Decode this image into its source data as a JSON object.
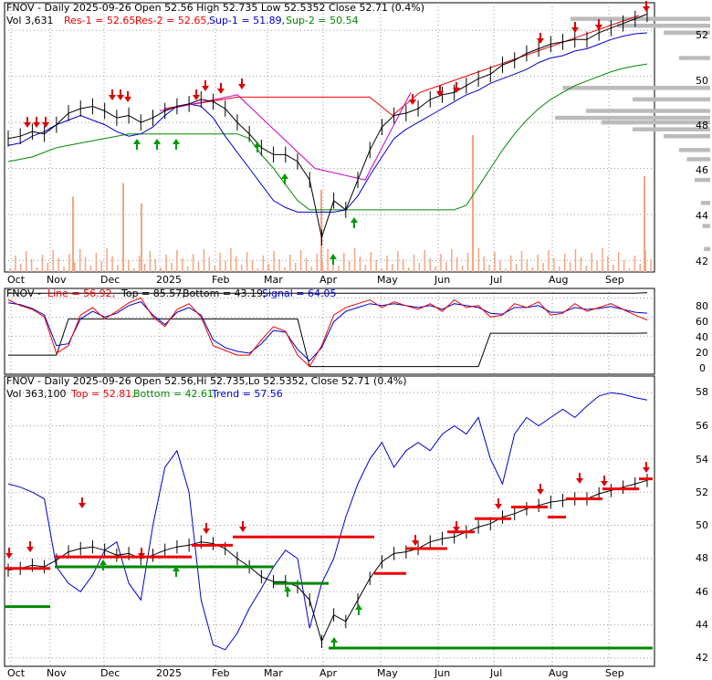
{
  "panel1": {
    "header": {
      "line1": "FNOV - Daily 2025-09-26 Open 52.56  High 52.735  Low 52.5352  Close 52.71 (0.4%)",
      "vol": "Vol 3,631",
      "res1": "Res-1 = 52.65,",
      "res2": "Res-2 = 52.65,",
      "sup1": "Sup-1 = 51.89,",
      "sup2": "Sup-2 = 50.54"
    },
    "yticks": [
      "52",
      "50",
      "48",
      "46",
      "44",
      "42"
    ]
  },
  "panel2": {
    "header": {
      "name": "FNOV -",
      "line": "Line = 56.92,",
      "top": "Top = 85.57,",
      "bottom": "Bottom = 43.19,",
      "signal": "Signal = 64.05"
    },
    "yticks": [
      "80",
      "60",
      "40",
      "20",
      "0"
    ]
  },
  "panel3": {
    "header": {
      "line1": "FNOV - Daily 2025-09-26 Open 52.56,Hi 52.735,Lo 52.5352, Close 52.71 (0.4%)",
      "vol": "Vol 363,100",
      "top": "Top = 52.81,",
      "bottom": "Bottom = 42.61,",
      "trend": "Trend = 57.56"
    },
    "yticks": [
      "58",
      "56",
      "54",
      "52",
      "50",
      "48",
      "46",
      "44",
      "42"
    ]
  },
  "xticks": [
    "Oct",
    "Nov",
    "Dec",
    "2025",
    "Feb",
    "Mar",
    "Apr",
    "May",
    "Jun",
    "Jul",
    "Aug",
    "Sep"
  ],
  "colors": {
    "price": "#000000",
    "res": "#ee0000",
    "sup": "#008800",
    "trend": "#0000cc",
    "signal": "#cc00cc",
    "volume": "#f4a582",
    "profile": "#bbbbbb"
  },
  "chart_data": [
    {
      "type": "line",
      "title": "FNOV - Daily 2025-09-26",
      "series": [
        {
          "name": "Close",
          "values": [
            47.3,
            47.4,
            47.6,
            47.5,
            47.9,
            48.4,
            48.6,
            48.7,
            48.5,
            48.2,
            48.3,
            48.0,
            48.2,
            48.5,
            48.7,
            48.8,
            49.0,
            48.9,
            48.6,
            48.0,
            47.5,
            46.9,
            46.6,
            46.6,
            46.3,
            45.5,
            43.0,
            44.6,
            44.2,
            45.5,
            46.8,
            47.8,
            48.3,
            48.4,
            48.6,
            49.0,
            49.2,
            49.3,
            49.6,
            49.9,
            50.1,
            50.5,
            50.7,
            51.0,
            51.2,
            51.4,
            51.5,
            51.6,
            51.6,
            51.9,
            52.1,
            52.3,
            52.5,
            52.71
          ]
        },
        {
          "name": "Sup-1",
          "values": [
            47.0,
            47.1,
            47.4,
            47.6,
            47.9,
            48.1,
            48.3,
            48.1,
            47.9,
            47.6,
            47.4,
            47.5,
            47.8,
            48.3,
            48.7,
            48.8,
            48.7,
            48.2,
            47.4,
            46.7,
            46.0,
            45.3,
            44.6,
            44.3,
            44.1,
            44.1,
            44.1,
            44.1,
            44.2,
            44.8,
            45.7,
            46.5,
            47.3,
            47.7,
            48.0,
            48.3,
            48.6,
            48.9,
            49.2,
            49.4,
            49.7,
            49.9,
            50.1,
            50.3,
            50.6,
            50.8,
            50.9,
            51.1,
            51.2,
            51.4,
            51.6,
            51.75,
            51.85,
            51.89
          ]
        },
        {
          "name": "Sup-2",
          "values": [
            46.3,
            46.4,
            46.5,
            46.7,
            46.9,
            47.0,
            47.1,
            47.2,
            47.3,
            47.4,
            47.5,
            47.5,
            47.5,
            47.5,
            47.5,
            47.5,
            47.5,
            47.5,
            47.5,
            47.5,
            47.3,
            46.6,
            46.0,
            45.3,
            44.6,
            44.2,
            44.2,
            44.2,
            44.2,
            44.2,
            44.2,
            44.2,
            44.2,
            44.2,
            44.2,
            44.2,
            44.2,
            44.2,
            44.4,
            45.2,
            46.0,
            46.8,
            47.5,
            48.1,
            48.6,
            49.0,
            49.3,
            49.6,
            49.8,
            50.0,
            50.2,
            50.35,
            50.45,
            50.54
          ]
        }
      ],
      "ylim": [
        41.5,
        53.2
      ],
      "volume_spikes": [
        {
          "month": "Nov",
          "value": 0.55
        },
        {
          "month": "Dec",
          "value": 0.65
        },
        {
          "month": "Jan",
          "value": 0.5
        },
        {
          "month": "Apr",
          "value": 0.6
        },
        {
          "month": "Jun",
          "value": 1.0
        },
        {
          "month": "Sep",
          "value": 0.7
        }
      ]
    },
    {
      "type": "line",
      "title": "",
      "series": [
        {
          "name": "Line",
          "values": [
            78,
            72,
            68,
            60,
            22,
            30,
            62,
            70,
            58,
            66,
            75,
            80,
            60,
            50,
            68,
            74,
            60,
            30,
            25,
            20,
            20,
            36,
            50,
            45,
            20,
            8,
            30,
            62,
            70,
            74,
            78,
            70,
            76,
            72,
            68,
            74,
            66,
            78,
            70,
            72,
            60,
            62,
            74,
            70,
            76,
            62,
            64,
            74,
            66,
            70,
            74,
            68,
            62,
            56.92
          ]
        },
        {
          "name": "Signal",
          "values": [
            75,
            73,
            69,
            62,
            30,
            32,
            58,
            66,
            60,
            64,
            72,
            76,
            62,
            52,
            65,
            70,
            62,
            36,
            28,
            24,
            22,
            32,
            46,
            44,
            26,
            14,
            28,
            55,
            66,
            70,
            74,
            72,
            74,
            72,
            70,
            72,
            68,
            74,
            72,
            70,
            64,
            63,
            70,
            70,
            72,
            65,
            65,
            70,
            68,
            69,
            71,
            68,
            65,
            64.05
          ]
        },
        {
          "name": "Top",
          "values": [
            85,
            85,
            85,
            85,
            85,
            85,
            85,
            85,
            85,
            85,
            85,
            85,
            85,
            85,
            85,
            85,
            85,
            85,
            85,
            85,
            85,
            85,
            85,
            85,
            85,
            85,
            85,
            85,
            85,
            85,
            85,
            85,
            85,
            85,
            85,
            85,
            85,
            85,
            85,
            85,
            85,
            85,
            85,
            85,
            85,
            85,
            85,
            85,
            85,
            85,
            85,
            85,
            85,
            85.57
          ]
        },
        {
          "name": "Bottom",
          "values": [
            20,
            20,
            20,
            20,
            20,
            58,
            58,
            58,
            58,
            58,
            58,
            58,
            58,
            58,
            58,
            58,
            58,
            58,
            58,
            58,
            58,
            58,
            58,
            58,
            58,
            8,
            8,
            8,
            8,
            8,
            8,
            8,
            8,
            8,
            8,
            8,
            8,
            8,
            8,
            8,
            43,
            43,
            43,
            43,
            43,
            43,
            43,
            43,
            43,
            43,
            43,
            43,
            43,
            43.19
          ]
        }
      ],
      "ylim": [
        0,
        90
      ]
    },
    {
      "type": "line",
      "title": "FNOV - Daily 2025-09-26",
      "series": [
        {
          "name": "Close",
          "values": [
            47.3,
            47.4,
            47.6,
            47.5,
            47.9,
            48.4,
            48.6,
            48.7,
            48.5,
            48.2,
            48.3,
            48.0,
            48.2,
            48.5,
            48.7,
            48.8,
            49.0,
            48.9,
            48.6,
            48.0,
            47.5,
            46.9,
            46.6,
            46.6,
            46.3,
            45.5,
            43.0,
            44.6,
            44.2,
            45.5,
            46.8,
            47.8,
            48.3,
            48.4,
            48.6,
            49.0,
            49.2,
            49.3,
            49.6,
            49.9,
            50.1,
            50.5,
            50.7,
            51.0,
            51.2,
            51.4,
            51.5,
            51.6,
            51.6,
            51.9,
            52.1,
            52.3,
            52.5,
            52.71
          ]
        },
        {
          "name": "Trend",
          "values": [
            52.5,
            52.3,
            52.0,
            51.6,
            47.5,
            46.5,
            46.0,
            47.0,
            48.5,
            49.0,
            46.5,
            45.5,
            50.0,
            53.5,
            54.5,
            52.0,
            45.5,
            42.8,
            42.5,
            43.5,
            45.0,
            46.2,
            47.5,
            48.5,
            48.0,
            43.8,
            46.5,
            48.0,
            50.5,
            52.5,
            54.0,
            55.0,
            53.5,
            54.5,
            55.0,
            54.5,
            55.5,
            56.0,
            55.5,
            56.5,
            54.0,
            52.5,
            55.5,
            56.5,
            56.0,
            56.5,
            57.0,
            56.5,
            57.2,
            57.8,
            58.0,
            57.9,
            57.7,
            57.56
          ]
        }
      ],
      "ylim": [
        41.5,
        59.0
      ]
    }
  ]
}
